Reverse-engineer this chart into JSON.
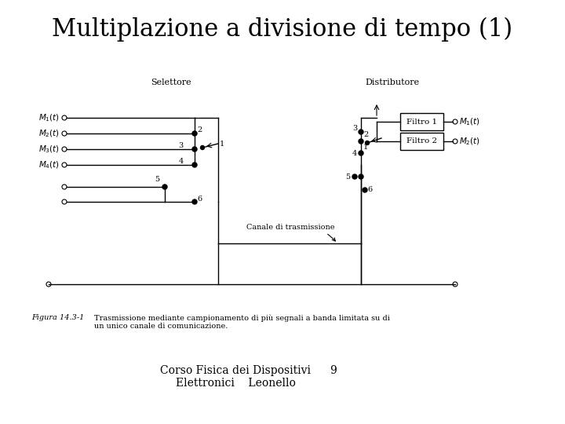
{
  "title": "Multiplazione a divisione di tempo (1)",
  "title_fontsize": 22,
  "footer_line1": "Corso Fisica dei Dispositivi",
  "footer_line2": "Elettronici    Leonello",
  "footer_page": "9",
  "fig_label": "Figura 14.3-1",
  "fig_caption1": "Trasmissione mediante campionamento di più segnali a banda limitata su di",
  "fig_caption2": "un unico canale di comunicazione.",
  "selettore_label": "Selettore",
  "distributore_label": "Distributore",
  "canale_label": "Canale di trasmissione",
  "filtro1_label": "Filtro 1",
  "filtro2_label": "Filtro 2",
  "bg_color": "#ffffff",
  "line_color": "#000000"
}
